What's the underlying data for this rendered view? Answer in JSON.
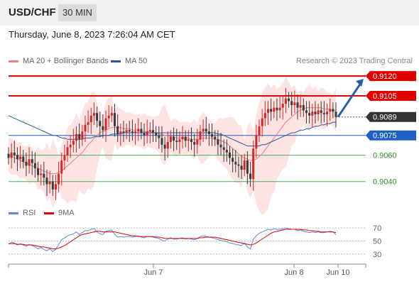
{
  "header": {
    "pair": "USD/CHF",
    "timeframe": "30 MIN",
    "datetime": "Thursday, June 8, 2023 7:26:04 AM CET"
  },
  "legend": {
    "ma20": "MA 20 + Bollinger Bands",
    "ma50": "MA 50",
    "credit": "Research © 2023 Trading Central"
  },
  "rsi_legend": {
    "rsi": "RSI",
    "ma": "9MA"
  },
  "colors": {
    "up": "#d62728",
    "down": "#3a3a3a",
    "resistance": "#e00000",
    "pivot": "#1f5fbf",
    "support": "#4caf50",
    "band": "#fddada",
    "ma20": "#f08080",
    "ma50": "#2a5a9a",
    "arrow": "#2a5fa8",
    "rsi": "#5b8bd9",
    "rsi_ma": "#e00000"
  },
  "chart_data": [
    {
      "type": "candlestick",
      "title": "USD/CHF 30 MIN",
      "x_ticks": [
        "Jun 7",
        "Jun 8",
        "Jun 10"
      ],
      "price_levels": [
        {
          "value": 0.912,
          "label": "0.9120",
          "kind": "resistance"
        },
        {
          "value": 0.9105,
          "label": "0.9105",
          "kind": "resistance"
        },
        {
          "value": 0.9089,
          "label": "0.9089",
          "kind": "last"
        },
        {
          "value": 0.9075,
          "label": "0.9075",
          "kind": "pivot"
        },
        {
          "value": 0.906,
          "label": "0.9060",
          "kind": "support"
        },
        {
          "value": 0.904,
          "label": "0.9040",
          "kind": "support"
        }
      ],
      "forecast_arrow": {
        "from": 0.9089,
        "to": 0.912
      },
      "closes": [
        0.9058,
        0.9062,
        0.906,
        0.9057,
        0.9059,
        0.9055,
        0.9052,
        0.9057,
        0.9054,
        0.905,
        0.9045,
        0.9046,
        0.9043,
        0.9038,
        0.904,
        0.9034,
        0.9038,
        0.9046,
        0.9056,
        0.906,
        0.9066,
        0.9068,
        0.9071,
        0.9076,
        0.9072,
        0.9078,
        0.9083,
        0.9085,
        0.909,
        0.9092,
        0.9086,
        0.9082,
        0.9079,
        0.9088,
        0.909,
        0.9092,
        0.9082,
        0.9076,
        0.9078,
        0.9077,
        0.9079,
        0.9078,
        0.9077,
        0.9078,
        0.908,
        0.9077,
        0.9075,
        0.9078,
        0.9079,
        0.9077,
        0.9075,
        0.9073,
        0.9068,
        0.9065,
        0.907,
        0.9074,
        0.9071,
        0.907,
        0.9072,
        0.9074,
        0.9071,
        0.9072,
        0.907,
        0.9068,
        0.9072,
        0.9078,
        0.908,
        0.9078,
        0.9076,
        0.9074,
        0.9072,
        0.9068,
        0.9066,
        0.9064,
        0.9062,
        0.9058,
        0.9055,
        0.9053,
        0.9052,
        0.9049,
        0.9056,
        0.9046,
        0.9042,
        0.9065,
        0.9075,
        0.9082,
        0.9088,
        0.9092,
        0.9095,
        0.9093,
        0.9096,
        0.9094,
        0.9096,
        0.9099,
        0.9103,
        0.9101,
        0.9098,
        0.91,
        0.9096,
        0.9098,
        0.9094,
        0.9092,
        0.909,
        0.9093,
        0.9091,
        0.9094,
        0.9092,
        0.9091,
        0.9093,
        0.9095,
        0.9093,
        0.9089
      ],
      "ma20": [
        0.906,
        0.9059,
        0.9058,
        0.9057,
        0.9056,
        0.9055,
        0.9054,
        0.9053,
        0.9052,
        0.9051,
        0.905,
        0.9049,
        0.9048,
        0.9047,
        0.9046,
        0.9046,
        0.9046,
        0.9047,
        0.9048,
        0.905,
        0.9052,
        0.9054,
        0.9056,
        0.9058,
        0.906,
        0.9062,
        0.9065,
        0.9068,
        0.907,
        0.9073,
        0.9075,
        0.9077,
        0.9078,
        0.9079,
        0.908,
        0.9081,
        0.9081,
        0.9081,
        0.9081,
        0.908,
        0.908,
        0.908,
        0.9079,
        0.9079,
        0.9079,
        0.9078,
        0.9078,
        0.9078,
        0.9078,
        0.9077,
        0.9077,
        0.9076,
        0.9076,
        0.9075,
        0.9075,
        0.9074,
        0.9074,
        0.9073,
        0.9073,
        0.9073,
        0.9073,
        0.9073,
        0.9072,
        0.9072,
        0.9072,
        0.9072,
        0.9073,
        0.9073,
        0.9073,
        0.9073,
        0.9072,
        0.9072,
        0.9071,
        0.907,
        0.9069,
        0.9067,
        0.9065,
        0.9063,
        0.9061,
        0.9059,
        0.9058,
        0.9057,
        0.9056,
        0.9056,
        0.9057,
        0.9059,
        0.9061,
        0.9064,
        0.9067,
        0.907,
        0.9073,
        0.9076,
        0.9079,
        0.9082,
        0.9085,
        0.9087,
        0.9089,
        0.9091,
        0.9093,
        0.9094,
        0.9095,
        0.9096,
        0.9096,
        0.9096,
        0.9096,
        0.9096,
        0.9096,
        0.9095,
        0.9095,
        0.9095,
        0.9094,
        0.9094
      ],
      "ma50": [
        0.909,
        0.9089,
        0.9088,
        0.9087,
        0.9086,
        0.9085,
        0.9084,
        0.9083,
        0.9082,
        0.9081,
        0.908,
        0.9079,
        0.9078,
        0.9077,
        0.9076,
        0.9075,
        0.9075,
        0.9074,
        0.9073,
        0.9073,
        0.9072,
        0.9072,
        0.9072,
        0.9072,
        0.9072,
        0.9072,
        0.9073,
        0.9073,
        0.9073,
        0.9074,
        0.9074,
        0.9074,
        0.9075,
        0.9075,
        0.9075,
        0.9076,
        0.9076,
        0.9076,
        0.9076,
        0.9077,
        0.9077,
        0.9077,
        0.9077,
        0.9077,
        0.9077,
        0.9077,
        0.9077,
        0.9077,
        0.9077,
        0.9077,
        0.9077,
        0.9077,
        0.9077,
        0.9077,
        0.9077,
        0.9077,
        0.9077,
        0.9077,
        0.9077,
        0.9077,
        0.9077,
        0.9077,
        0.9077,
        0.9077,
        0.9077,
        0.9077,
        0.9077,
        0.9077,
        0.9077,
        0.9077,
        0.9077,
        0.9076,
        0.9076,
        0.9075,
        0.9074,
        0.9073,
        0.9072,
        0.9071,
        0.907,
        0.9069,
        0.9068,
        0.9067,
        0.9067,
        0.9067,
        0.9067,
        0.9067,
        0.9068,
        0.9068,
        0.9069,
        0.907,
        0.9071,
        0.9072,
        0.9073,
        0.9074,
        0.9075,
        0.9076,
        0.9077,
        0.9077,
        0.9078,
        0.9079,
        0.9079,
        0.908,
        0.908,
        0.9081,
        0.9082,
        0.9082,
        0.9083,
        0.9083,
        0.9084,
        0.9084,
        0.9085,
        0.9085
      ],
      "ylim": [
        0.9028,
        0.9126
      ]
    },
    {
      "type": "line",
      "title": "RSI",
      "y_ticks": [
        70,
        50,
        30
      ],
      "ylim": [
        20,
        80
      ],
      "rsi": [
        45,
        48,
        47,
        44,
        46,
        44,
        42,
        45,
        43,
        41,
        38,
        40,
        37,
        35,
        38,
        34,
        37,
        45,
        52,
        55,
        58,
        60,
        61,
        64,
        60,
        63,
        66,
        66,
        68,
        69,
        64,
        61,
        60,
        65,
        66,
        67,
        60,
        56,
        57,
        56,
        57,
        57,
        56,
        57,
        58,
        56,
        55,
        57,
        57,
        56,
        55,
        54,
        51,
        50,
        53,
        55,
        53,
        53,
        54,
        55,
        53,
        54,
        53,
        52,
        54,
        57,
        58,
        57,
        56,
        55,
        54,
        52,
        51,
        50,
        49,
        47,
        46,
        45,
        44,
        43,
        47,
        41,
        38,
        53,
        58,
        62,
        64,
        66,
        68,
        67,
        69,
        68,
        68,
        69,
        70,
        69,
        68,
        68,
        66,
        67,
        65,
        64,
        63,
        64,
        63,
        64,
        63,
        63,
        64,
        65,
        64,
        60
      ],
      "rsi_ma": [
        46,
        46,
        46,
        45,
        45,
        45,
        44,
        44,
        44,
        43,
        42,
        41,
        41,
        40,
        39,
        38,
        38,
        39,
        41,
        43,
        46,
        49,
        52,
        55,
        58,
        60,
        61,
        62,
        63,
        64,
        65,
        65,
        64,
        64,
        64,
        64,
        64,
        63,
        62,
        61,
        60,
        59,
        58,
        58,
        57,
        57,
        57,
        57,
        57,
        57,
        56,
        56,
        55,
        54,
        54,
        54,
        54,
        54,
        54,
        54,
        54,
        54,
        54,
        54,
        54,
        55,
        55,
        56,
        56,
        56,
        56,
        55,
        54,
        53,
        52,
        51,
        50,
        49,
        48,
        47,
        46,
        45,
        44,
        45,
        47,
        50,
        53,
        56,
        59,
        62,
        64,
        65,
        66,
        67,
        68,
        68,
        68,
        68,
        68,
        68,
        67,
        67,
        66,
        66,
        65,
        65,
        64,
        64,
        64,
        64,
        64,
        63
      ]
    }
  ]
}
